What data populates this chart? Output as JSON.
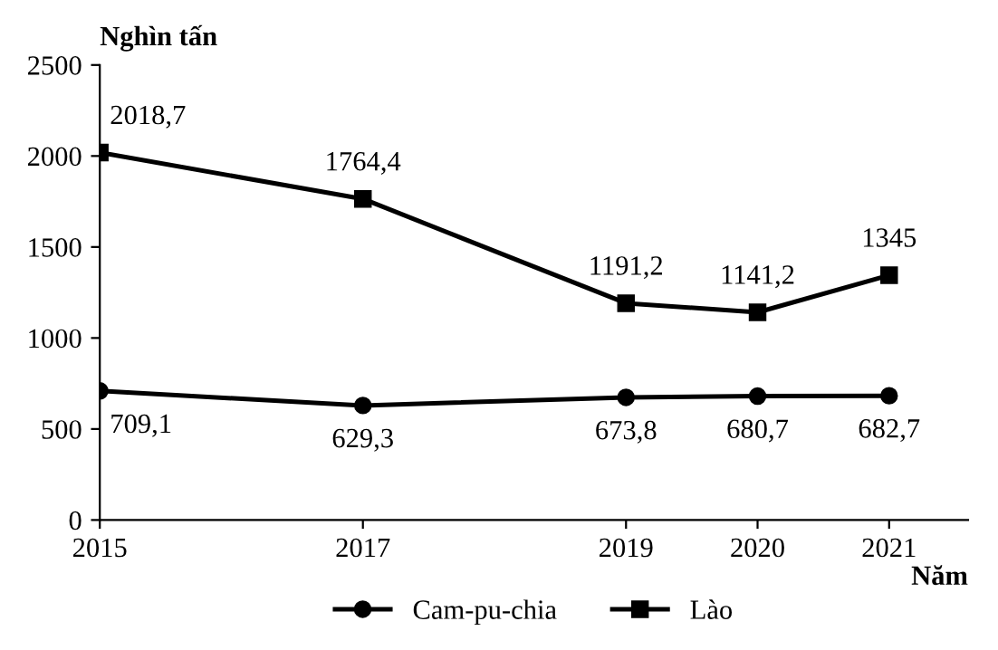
{
  "chart_data": {
    "type": "line",
    "ylabel": "Nghìn tấn",
    "xlabel": "Năm",
    "x": [
      2015,
      2017,
      2019,
      2020,
      2021
    ],
    "xlim": [
      2015,
      2021.6
    ],
    "xticks": [
      2015,
      2017,
      2019,
      2020,
      2021
    ],
    "ylim": [
      0,
      2500
    ],
    "yticks": [
      0,
      500,
      1000,
      1500,
      2000,
      2500
    ],
    "grid": false,
    "legend": "bottom",
    "line_style": "solid",
    "series": [
      {
        "name": "Cam-pu-chia",
        "color": "#000000",
        "marker": "circle",
        "values": [
          709.1,
          629.3,
          673.8,
          680.7,
          682.7
        ],
        "value_labels": [
          "709,1",
          "629,3",
          "673,8",
          "680,7",
          "682,7"
        ]
      },
      {
        "name": "Lào",
        "color": "#000000",
        "marker": "square",
        "values": [
          2018.7,
          1764.4,
          1191.2,
          1141.2,
          1345
        ],
        "value_labels": [
          "2018,7",
          "1764,4",
          "1191,2",
          "1141,2",
          "1345"
        ]
      }
    ]
  }
}
